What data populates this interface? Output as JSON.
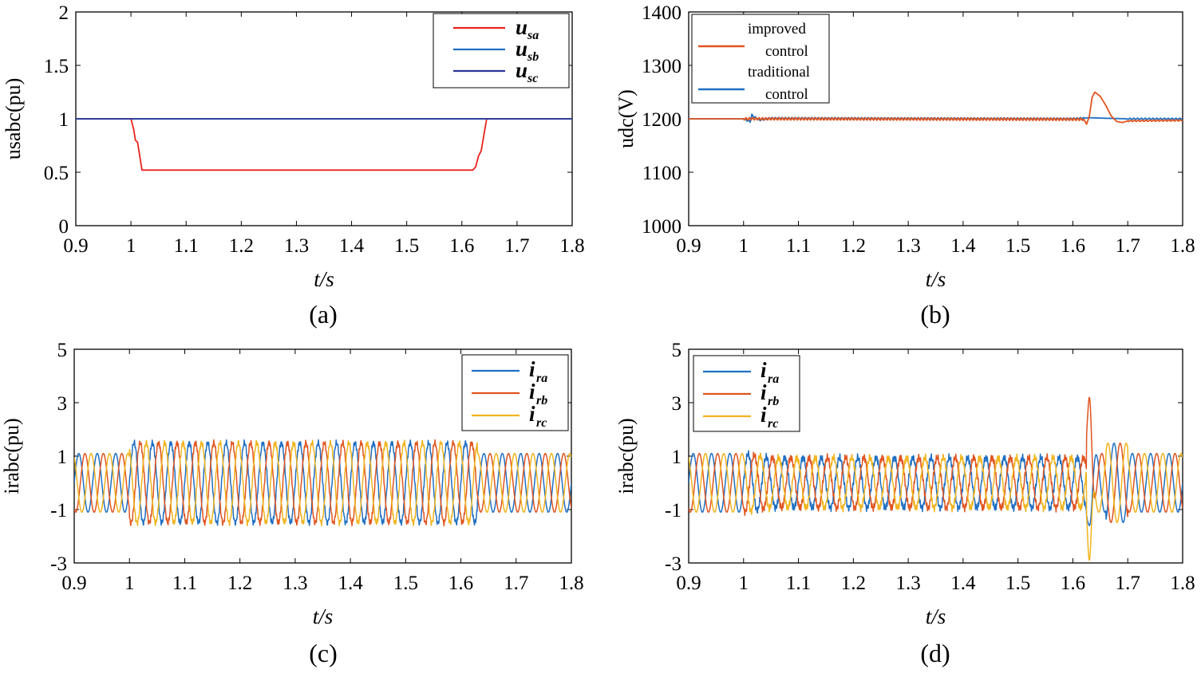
{
  "colors": {
    "red": "#e8231c",
    "blue": "#1f6fc2",
    "navy": "#2b3598",
    "orange": "#e0541f",
    "yellow": "#f0b41e",
    "axis": "#000000"
  },
  "chart_data": [
    {
      "id": "a",
      "type": "line",
      "caption": "(a)",
      "xlabel": "t/s",
      "ylabel": "usabc(pu)",
      "xlim": [
        0.9,
        1.8
      ],
      "ylim": [
        0,
        2
      ],
      "xticks": [
        "0.9",
        "1",
        "1.1",
        "1.2",
        "1.3",
        "1.4",
        "1.5",
        "1.6",
        "1.7",
        "1.8"
      ],
      "yticks": [
        "0",
        "0.5",
        "1",
        "1.5",
        "2"
      ],
      "legend_position": "top-right",
      "series": [
        {
          "name": "u",
          "sub": "sa",
          "color": "#e8231c",
          "x": [
            0.9,
            1.0,
            1.005,
            1.008,
            1.012,
            1.02,
            1.62,
            1.625,
            1.63,
            1.635,
            1.64,
            1.645,
            1.8
          ],
          "y": [
            1.0,
            1.0,
            0.9,
            0.8,
            0.78,
            0.52,
            0.52,
            0.55,
            0.65,
            0.7,
            0.85,
            1.0,
            1.0
          ]
        },
        {
          "name": "u",
          "sub": "sb",
          "color": "#1f6fc2",
          "x": [
            0.9,
            1.8
          ],
          "y": [
            1.0,
            1.0
          ]
        },
        {
          "name": "u",
          "sub": "sc",
          "color": "#2b3598",
          "x": [
            0.9,
            1.8
          ],
          "y": [
            1.0,
            1.0
          ]
        }
      ]
    },
    {
      "id": "b",
      "type": "line",
      "caption": "(b)",
      "xlabel": "t/s",
      "ylabel": "udc(V)",
      "xlim": [
        0.9,
        1.8
      ],
      "ylim": [
        1000,
        1400
      ],
      "xticks": [
        "0.9",
        "1",
        "1.1",
        "1.2",
        "1.3",
        "1.4",
        "1.5",
        "1.6",
        "1.7",
        "1.8"
      ],
      "yticks": [
        "1000",
        "1100",
        "1200",
        "1300",
        "1400"
      ],
      "legend_position": "top-left",
      "series": [
        {
          "name": "improved control",
          "color": "#e0541f",
          "x": [
            0.9,
            1.0,
            1.62,
            1.625,
            1.63,
            1.635,
            1.64,
            1.65,
            1.66,
            1.67,
            1.68,
            1.69,
            1.7,
            1.8
          ],
          "y": [
            1200,
            1200,
            1199,
            1190,
            1205,
            1240,
            1250,
            1242,
            1225,
            1205,
            1195,
            1193,
            1196,
            1197
          ]
        },
        {
          "name": "traditional control",
          "color": "#1f6fc2",
          "x": [
            0.9,
            1.0,
            1.012,
            1.015,
            1.02,
            1.03,
            1.05,
            1.6,
            1.63,
            1.66,
            1.7,
            1.8
          ],
          "y": [
            1200,
            1200,
            1195,
            1207,
            1203,
            1198,
            1201,
            1200,
            1202,
            1201,
            1200,
            1200
          ]
        }
      ]
    },
    {
      "id": "c",
      "type": "line",
      "caption": "(c)",
      "xlabel": "t/s",
      "ylabel": "irabc(pu)",
      "xlim": [
        0.9,
        1.8
      ],
      "ylim": [
        -3,
        5
      ],
      "xticks": [
        "0.9",
        "1",
        "1.1",
        "1.2",
        "1.3",
        "1.4",
        "1.5",
        "1.6",
        "1.7",
        "1.8"
      ],
      "yticks": [
        "-3",
        "-1",
        "1",
        "3",
        "5"
      ],
      "legend_position": "top-right",
      "frequency_hz": 30,
      "amplitude_normal": 1.1,
      "amplitude_fault": 1.5,
      "fault_interval": [
        1.0,
        1.63
      ],
      "series": [
        {
          "name": "i",
          "sub": "ra",
          "color": "#1f6fc2"
        },
        {
          "name": "i",
          "sub": "rb",
          "color": "#e0541f"
        },
        {
          "name": "i",
          "sub": "rc",
          "color": "#f0b41e"
        }
      ]
    },
    {
      "id": "d",
      "type": "line",
      "caption": "(d)",
      "xlabel": "t/s",
      "ylabel": "irabc(pu)",
      "xlim": [
        0.9,
        1.8
      ],
      "ylim": [
        -3,
        5
      ],
      "xticks": [
        "0.9",
        "1",
        "1.1",
        "1.2",
        "1.3",
        "1.4",
        "1.5",
        "1.6",
        "1.7",
        "1.8"
      ],
      "yticks": [
        "-3",
        "-1",
        "1",
        "3",
        "5"
      ],
      "legend_position": "top-left",
      "frequency_hz": 30,
      "amplitude_normal": 1.1,
      "amplitude_fault": 0.95,
      "fault_interval": [
        1.0,
        1.63
      ],
      "peaks": {
        "ra": -1.6,
        "rb": 3.2,
        "rc": -2.9
      },
      "series": [
        {
          "name": "i",
          "sub": "ra",
          "color": "#1f6fc2"
        },
        {
          "name": "i",
          "sub": "rb",
          "color": "#e0541f"
        },
        {
          "name": "i",
          "sub": "rc",
          "color": "#f0b41e"
        }
      ]
    }
  ]
}
